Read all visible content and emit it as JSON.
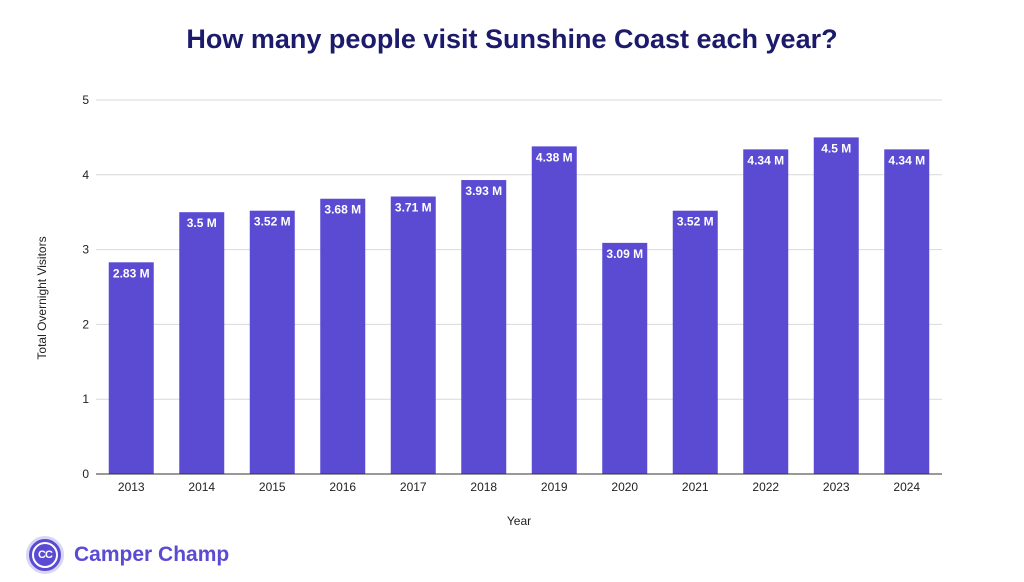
{
  "chart_data": {
    "type": "bar",
    "title": "How many people visit Sunshine Coast each year?",
    "xlabel": "Year",
    "ylabel": "Total Overnight Visitors",
    "categories": [
      "2013",
      "2014",
      "2015",
      "2016",
      "2017",
      "2018",
      "2019",
      "2020",
      "2021",
      "2022",
      "2023",
      "2024"
    ],
    "values": [
      2.83,
      3.5,
      3.52,
      3.68,
      3.71,
      3.93,
      4.38,
      3.09,
      3.52,
      4.34,
      4.5,
      4.34
    ],
    "value_labels": [
      "2.83 M",
      "3.5 M",
      "3.52 M",
      "3.68 M",
      "3.71 M",
      "3.93 M",
      "4.38 M",
      "3.09 M",
      "3.52 M",
      "4.34 M",
      "4.5 M",
      "4.34 M"
    ],
    "ylim": [
      0,
      5
    ],
    "yticks": [
      "0",
      "1",
      "2",
      "3",
      "4",
      "5"
    ],
    "grid": true,
    "legend": "none",
    "bar_color": "#5a4bd2"
  },
  "brand": {
    "logo_text": "CC",
    "name": "Camper Champ",
    "color": "#5a4bd2"
  },
  "colors": {
    "title": "#1c1a6b",
    "grid": "#d9d9d9"
  }
}
